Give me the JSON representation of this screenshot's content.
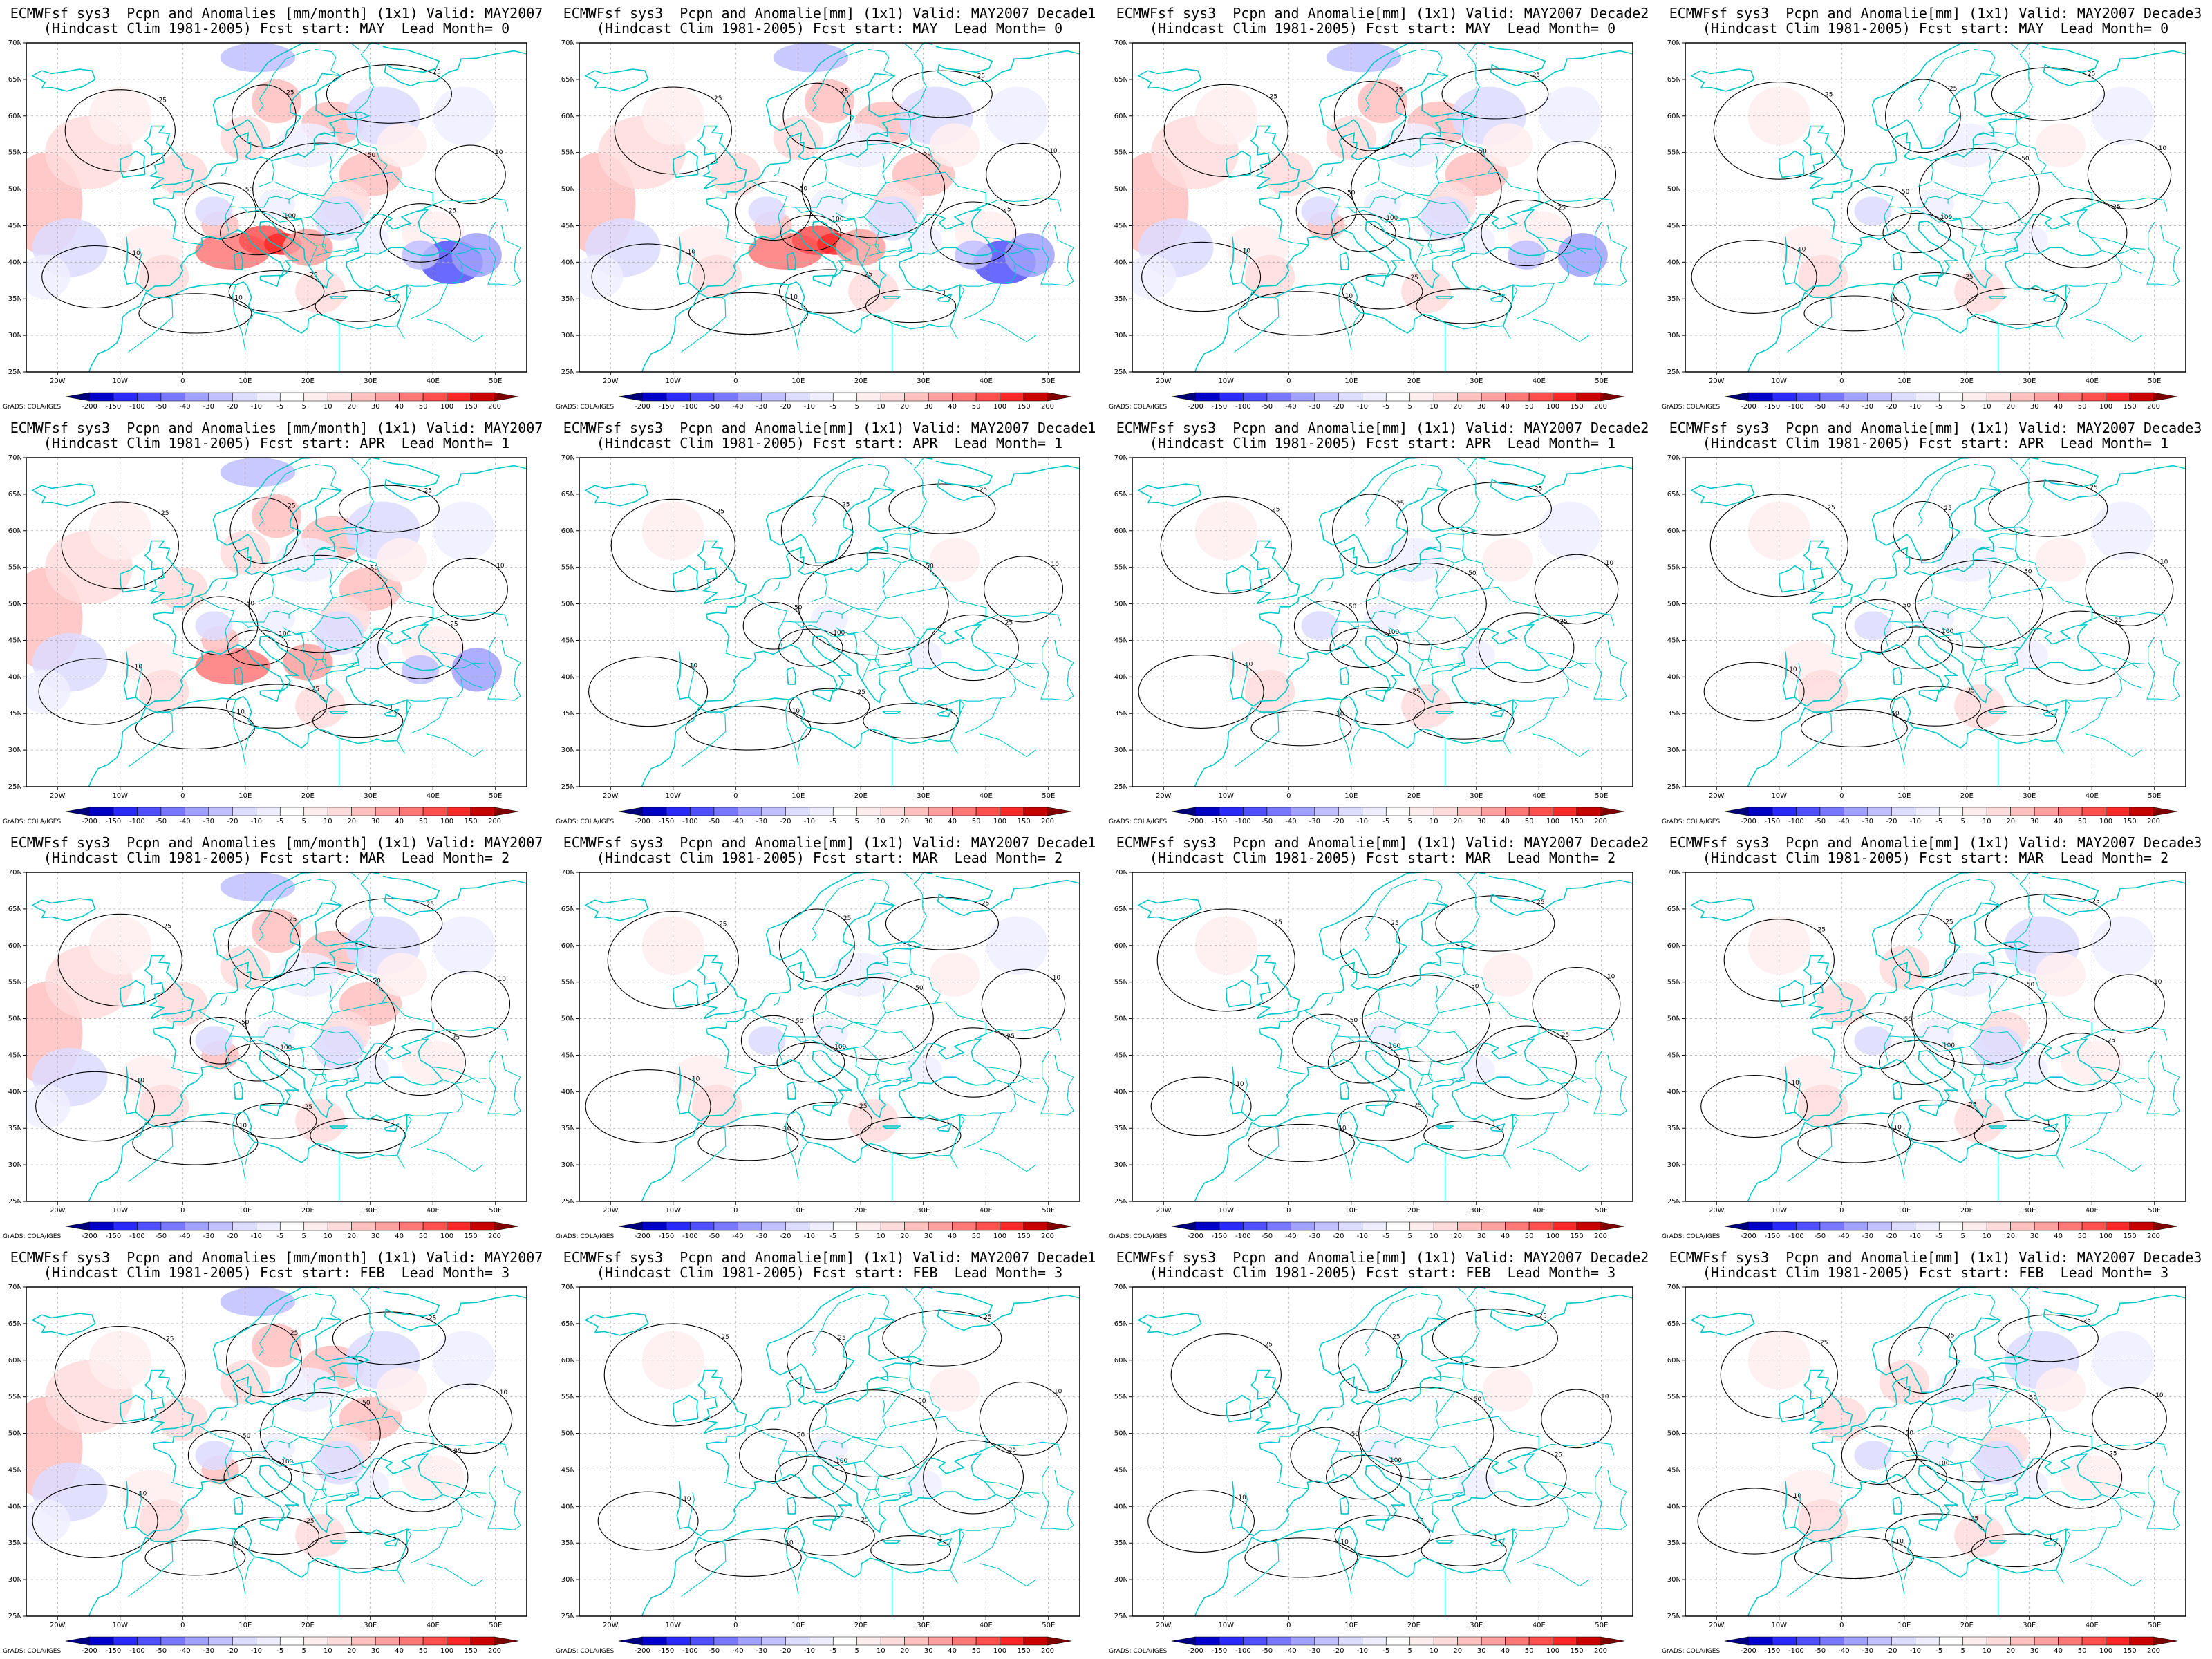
{
  "figure": {
    "rows": [
      {
        "fcst_start": "MAY",
        "lead_month": "0",
        "panels": [
          {
            "line1": "ECMWFsf sys3  Pcpn and Anomalies [mm/month] (1x1) Valid: MAY2007",
            "line2": "(Hindcast Clim 1981-2005) Fcst start: MAY  Lead Month= 0",
            "intensity": 1.0
          },
          {
            "line1": "ECMWFsf sys3  Pcpn and Anomalie[mm] (1x1) Valid: MAY2007 Decade1",
            "line2": "(Hindcast Clim 1981-2005) Fcst start: MAY  Lead Month= 0",
            "intensity": 1.0
          },
          {
            "line1": "ECMWFsf sys3  Pcpn and Anomalie[mm] (1x1) Valid: MAY2007 Decade2",
            "line2": "(Hindcast Clim 1981-2005) Fcst start: MAY  Lead Month= 0",
            "intensity": 0.7
          },
          {
            "line1": "ECMWFsf sys3  Pcpn and Anomalie[mm] (1x1) Valid: MAY2007 Decade3",
            "line2": "(Hindcast Clim 1981-2005) Fcst start: MAY  Lead Month= 0",
            "intensity": 0.3
          }
        ]
      },
      {
        "fcst_start": "APR",
        "lead_month": "1",
        "panels": [
          {
            "line1": "ECMWFsf sys3  Pcpn and Anomalies [mm/month] (1x1) Valid: MAY2007",
            "line2": "(Hindcast Clim 1981-2005) Fcst start: APR  Lead Month= 1",
            "intensity": 0.8
          },
          {
            "line1": "ECMWFsf sys3  Pcpn and Anomalie[mm] (1x1) Valid: MAY2007 Decade1",
            "line2": "(Hindcast Clim 1981-2005) Fcst start: APR  Lead Month= 1",
            "intensity": 0.2
          },
          {
            "line1": "ECMWFsf sys3  Pcpn and Anomalie[mm] (1x1) Valid: MAY2007 Decade2",
            "line2": "(Hindcast Clim 1981-2005) Fcst start: APR  Lead Month= 1",
            "intensity": 0.3
          },
          {
            "line1": "ECMWFsf sys3  Pcpn and Anomalie[mm] (1x1) Valid: MAY2007 Decade3",
            "line2": "(Hindcast Clim 1981-2005) Fcst start: APR  Lead Month= 1",
            "intensity": 0.3
          }
        ]
      },
      {
        "fcst_start": "MAR",
        "lead_month": "2",
        "panels": [
          {
            "line1": "ECMWFsf sys3  Pcpn and Anomalies [mm/month] (1x1) Valid: MAY2007",
            "line2": "(Hindcast Clim 1981-2005) Fcst start: MAR  Lead Month= 2",
            "intensity": 0.6
          },
          {
            "line1": "ECMWFsf sys3  Pcpn and Anomalie[mm] (1x1) Valid: MAY2007 Decade1",
            "line2": "(Hindcast Clim 1981-2005) Fcst start: MAR  Lead Month= 2",
            "intensity": 0.3
          },
          {
            "line1": "ECMWFsf sys3  Pcpn and Anomalie[mm] (1x1) Valid: MAY2007 Decade2",
            "line2": "(Hindcast Clim 1981-2005) Fcst start: MAR  Lead Month= 2",
            "intensity": 0.2
          },
          {
            "line1": "ECMWFsf sys3  Pcpn and Anomalie[mm] (1x1) Valid: MAY2007 Decade3",
            "line2": "(Hindcast Clim 1981-2005) Fcst start: MAR  Lead Month= 2",
            "intensity": 0.4
          }
        ]
      },
      {
        "fcst_start": "FEB",
        "lead_month": "3",
        "panels": [
          {
            "line1": "ECMWFsf sys3  Pcpn and Anomalies [mm/month] (1x1) Valid: MAY2007",
            "line2": "(Hindcast Clim 1981-2005) Fcst start: FEB  Lead Month= 3",
            "intensity": 0.6
          },
          {
            "line1": "ECMWFsf sys3  Pcpn and Anomalie[mm] (1x1) Valid: MAY2007 Decade1",
            "line2": "(Hindcast Clim 1981-2005) Fcst start: FEB  Lead Month= 3",
            "intensity": 0.2
          },
          {
            "line1": "ECMWFsf sys3  Pcpn and Anomalie[mm] (1x1) Valid: MAY2007 Decade2",
            "line2": "(Hindcast Clim 1981-2005) Fcst start: FEB  Lead Month= 3",
            "intensity": 0.15
          },
          {
            "line1": "ECMWFsf sys3  Pcpn and Anomalie[mm] (1x1) Valid: MAY2007 Decade3",
            "line2": "(Hindcast Clim 1981-2005) Fcst start: FEB  Lead Month= 3",
            "intensity": 0.4
          }
        ]
      }
    ]
  },
  "map": {
    "lon_range": [
      -25,
      55
    ],
    "lat_range": [
      25,
      70
    ],
    "lon_ticks": [
      {
        "value": -20,
        "label": "20W"
      },
      {
        "value": -10,
        "label": "10W"
      },
      {
        "value": 0,
        "label": "0"
      },
      {
        "value": 10,
        "label": "10E"
      },
      {
        "value": 20,
        "label": "20E"
      },
      {
        "value": 30,
        "label": "30E"
      },
      {
        "value": 40,
        "label": "40E"
      },
      {
        "value": 50,
        "label": "50E"
      }
    ],
    "lat_ticks": [
      {
        "value": 25,
        "label": "25N"
      },
      {
        "value": 30,
        "label": "30N"
      },
      {
        "value": 35,
        "label": "35N"
      },
      {
        "value": 40,
        "label": "40N"
      },
      {
        "value": 45,
        "label": "45N"
      },
      {
        "value": 50,
        "label": "50N"
      },
      {
        "value": 55,
        "label": "55N"
      },
      {
        "value": 60,
        "label": "60N"
      },
      {
        "value": 65,
        "label": "65N"
      },
      {
        "value": 70,
        "label": "70N"
      }
    ],
    "grid": true,
    "colors": {
      "coastline": "#00c8c8",
      "contour": "#000000",
      "gridline": "#aaaaaa"
    }
  },
  "colorbar": {
    "labels": [
      "-200",
      "-150",
      "-100",
      "-50",
      "-40",
      "-30",
      "-20",
      "-10",
      "-5",
      "5",
      "10",
      "20",
      "30",
      "40",
      "50",
      "100",
      "150",
      "200"
    ],
    "colors": [
      "#00007f",
      "#0000c8",
      "#2828ff",
      "#5050ff",
      "#7878ff",
      "#a0a0ff",
      "#c0c0ff",
      "#dcdcff",
      "#eeeeff",
      "#ffffff",
      "#ffeeee",
      "#ffdcdc",
      "#ffc0c0",
      "#ffa0a0",
      "#ff7878",
      "#ff5050",
      "#ff2828",
      "#c80000",
      "#7f0000"
    ]
  },
  "credit": "GrADS: COLA/IGES"
}
